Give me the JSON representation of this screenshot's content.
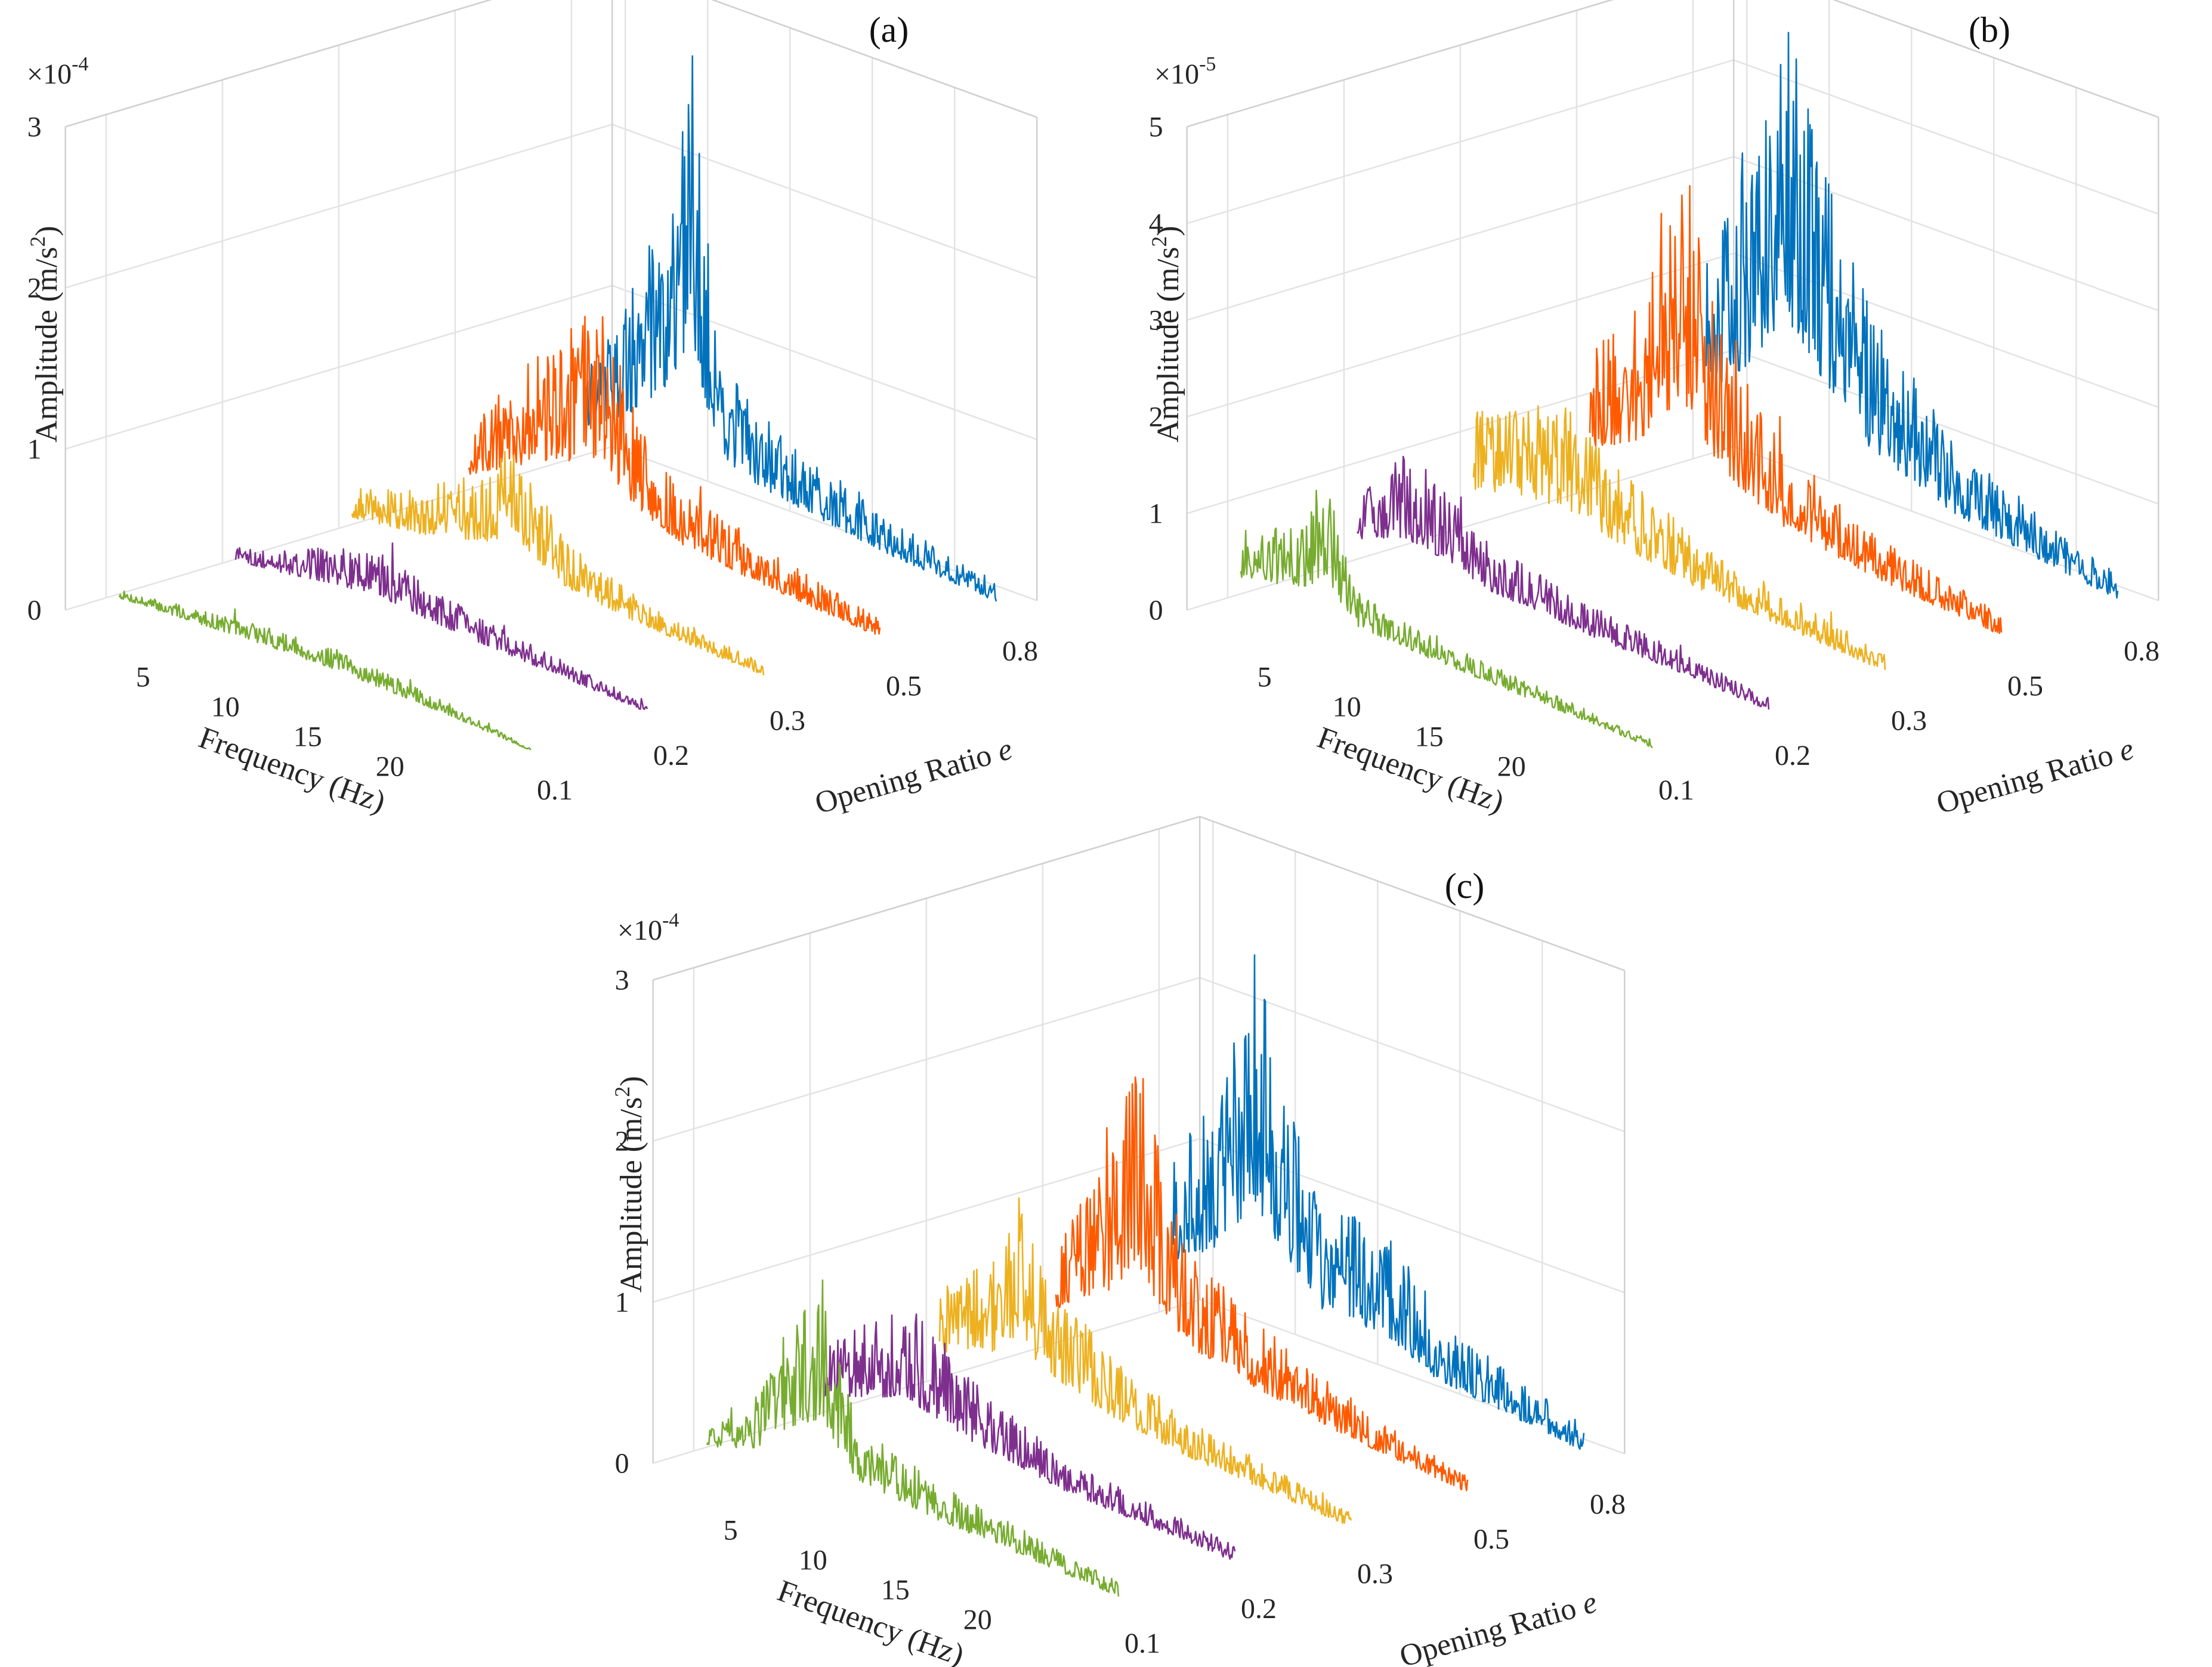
{
  "chart_data": [
    {
      "type": "waterfall-3d-line",
      "panel_label": "(a)",
      "exponent_label": "×10",
      "exponent_power": "-4",
      "xlabel": "Frequency (Hz)",
      "ylabel_text": "Opening Ratio",
      "ylabel_symbol": "e",
      "zlabel": "Amplitude (m/s",
      "zlabel_sup": "2",
      "zlabel_close": ")",
      "x_ticks": [
        "5",
        "10",
        "15",
        "20"
      ],
      "y_ticks": [
        "0.1",
        "0.2",
        "0.3",
        "0.5",
        "0.8"
      ],
      "z_ticks": [
        "0",
        "1",
        "2",
        "3"
      ],
      "xlim": [
        0,
        25
      ],
      "zlim": [
        0,
        3
      ],
      "series": [
        {
          "opening": "0.1",
          "color": "#77ac30",
          "peaks": [
            [
              0,
              0.08
            ],
            [
              3.5,
              0.12
            ],
            [
              8,
              0.18
            ],
            [
              13,
              0.2
            ],
            [
              20,
              0.12
            ],
            [
              25,
              0.02
            ]
          ]
        },
        {
          "opening": "0.2",
          "color": "#7e2f8e",
          "peaks": [
            [
              0,
              0.12
            ],
            [
              3,
              0.22
            ],
            [
              6,
              0.35
            ],
            [
              9,
              0.42
            ],
            [
              12,
              0.3
            ],
            [
              16,
              0.22
            ],
            [
              25,
              0.08
            ]
          ]
        },
        {
          "opening": "0.3",
          "color": "#edb120",
          "peaks": [
            [
              0,
              0.28
            ],
            [
              4,
              0.42
            ],
            [
              8,
              0.68
            ],
            [
              10,
              0.95
            ],
            [
              13,
              0.42
            ],
            [
              18,
              0.22
            ],
            [
              25,
              0.12
            ]
          ]
        },
        {
          "opening": "0.5",
          "color": "#ff5a00",
          "peaks": [
            [
              0,
              0.42
            ],
            [
              3,
              0.9
            ],
            [
              6,
              1.3
            ],
            [
              8,
              1.55
            ],
            [
              10,
              0.95
            ],
            [
              13,
              0.55
            ],
            [
              18,
              0.35
            ],
            [
              25,
              0.18
            ]
          ]
        },
        {
          "opening": "0.8",
          "color": "#0072bd",
          "peaks": [
            [
              0,
              0.6
            ],
            [
              3,
              1.25
            ],
            [
              5,
              1.9
            ],
            [
              6.5,
              2.85
            ],
            [
              8,
              1.1
            ],
            [
              10,
              0.75
            ],
            [
              13,
              0.6
            ],
            [
              18,
              0.35
            ],
            [
              25,
              0.2
            ]
          ]
        }
      ]
    },
    {
      "type": "waterfall-3d-line",
      "panel_label": "(b)",
      "exponent_label": "×10",
      "exponent_power": "-5",
      "xlabel": "Frequency (Hz)",
      "ylabel_text": "Opening Ratio",
      "ylabel_symbol": "e",
      "zlabel": "Amplitude (m/s",
      "zlabel_sup": "2",
      "zlabel_close": ")",
      "x_ticks": [
        "5",
        "10",
        "15",
        "20"
      ],
      "y_ticks": [
        "0.1",
        "0.2",
        "0.3",
        "0.5",
        "0.8"
      ],
      "z_ticks": [
        "0",
        "1",
        "2",
        "3",
        "4",
        "5"
      ],
      "xlim": [
        0,
        25
      ],
      "zlim": [
        0,
        5
      ],
      "series": [
        {
          "opening": "0.1",
          "color": "#77ac30",
          "peaks": [
            [
              0,
              0.75
            ],
            [
              4,
              1.1
            ],
            [
              5,
              1.7
            ],
            [
              7,
              0.55
            ],
            [
              12,
              0.35
            ],
            [
              25,
              0.12
            ]
          ]
        },
        {
          "opening": "0.2",
          "color": "#7e2f8e",
          "peaks": [
            [
              0,
              0.85
            ],
            [
              3,
              1.4
            ],
            [
              5,
              1.2
            ],
            [
              8,
              0.75
            ],
            [
              14,
              0.5
            ],
            [
              25,
              0.2
            ]
          ]
        },
        {
          "opening": "0.3",
          "color": "#edb120",
          "peaks": [
            [
              0,
              1.3
            ],
            [
              3,
              1.65
            ],
            [
              6,
              1.7
            ],
            [
              9,
              1.2
            ],
            [
              14,
              0.75
            ],
            [
              25,
              0.3
            ]
          ]
        },
        {
          "opening": "0.5",
          "color": "#ff5a00",
          "peaks": [
            [
              0,
              1.5
            ],
            [
              3,
              2.2
            ],
            [
              4.5,
              3.4
            ],
            [
              6,
              3.7
            ],
            [
              8,
              2.2
            ],
            [
              12,
              1.2
            ],
            [
              18,
              0.65
            ],
            [
              25,
              0.35
            ]
          ]
        },
        {
          "opening": "0.8",
          "color": "#0072bd",
          "peaks": [
            [
              0,
              2.2
            ],
            [
              2.5,
              3.2
            ],
            [
              4,
              4.6
            ],
            [
              5,
              5.05
            ],
            [
              7,
              3.8
            ],
            [
              10,
              2.2
            ],
            [
              15,
              1.2
            ],
            [
              20,
              0.75
            ],
            [
              25,
              0.4
            ]
          ]
        }
      ]
    },
    {
      "type": "waterfall-3d-line",
      "panel_label": "(c)",
      "exponent_label": "×10",
      "exponent_power": "-4",
      "xlabel": "Frequency (Hz)",
      "ylabel_text": "Opening Ratio",
      "ylabel_symbol": "e",
      "zlabel": "Amplitude (m/s",
      "zlabel_sup": "2",
      "zlabel_close": ")",
      "x_ticks": [
        "5",
        "10",
        "15",
        "20"
      ],
      "y_ticks": [
        "0.1",
        "0.2",
        "0.3",
        "0.5",
        "0.8"
      ],
      "z_ticks": [
        "0",
        "1",
        "2",
        "3"
      ],
      "xlim": [
        0,
        25
      ],
      "zlim": [
        0,
        3
      ],
      "series": [
        {
          "opening": "0.1",
          "color": "#77ac30",
          "peaks": [
            [
              0,
              0.15
            ],
            [
              3,
              0.45
            ],
            [
              5,
              1.05
            ],
            [
              7,
              1.4
            ],
            [
              9,
              0.55
            ],
            [
              14,
              0.35
            ],
            [
              25,
              0.15
            ]
          ]
        },
        {
          "opening": "0.2",
          "color": "#7e2f8e",
          "peaks": [
            [
              0,
              0.45
            ],
            [
              3,
              0.75
            ],
            [
              5,
              0.95
            ],
            [
              6,
              0.85
            ],
            [
              9,
              0.6
            ],
            [
              15,
              0.3
            ],
            [
              25,
              0.15
            ]
          ]
        },
        {
          "opening": "0.3",
          "color": "#edb120",
          "peaks": [
            [
              0,
              0.6
            ],
            [
              3,
              0.9
            ],
            [
              5,
              1.45
            ],
            [
              6,
              1.0
            ],
            [
              10,
              0.6
            ],
            [
              15,
              0.35
            ],
            [
              25,
              0.15
            ]
          ]
        },
        {
          "opening": "0.5",
          "color": "#ff5a00",
          "peaks": [
            [
              0,
              0.75
            ],
            [
              3,
              1.3
            ],
            [
              5,
              2.1
            ],
            [
              6,
              1.6
            ],
            [
              8,
              0.95
            ],
            [
              12,
              0.65
            ],
            [
              18,
              0.35
            ],
            [
              25,
              0.15
            ]
          ]
        },
        {
          "opening": "0.8",
          "color": "#0072bd",
          "peaks": [
            [
              0,
              0.95
            ],
            [
              3,
              1.6
            ],
            [
              5,
              2.6
            ],
            [
              6,
              2.1
            ],
            [
              9,
              1.1
            ],
            [
              13,
              1.05
            ],
            [
              16,
              0.6
            ],
            [
              25,
              0.25
            ]
          ]
        }
      ]
    }
  ]
}
